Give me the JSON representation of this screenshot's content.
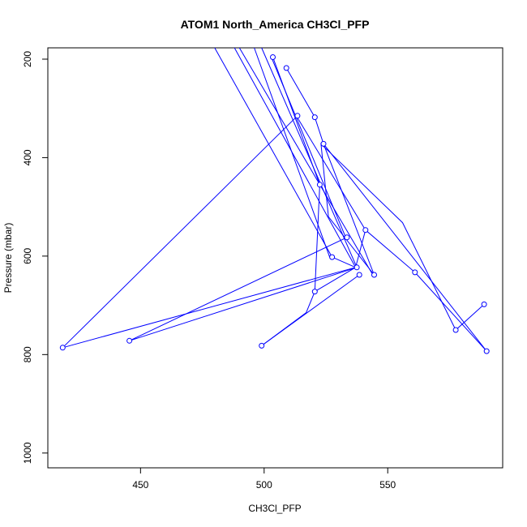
{
  "chart_data": {
    "type": "line",
    "title": "ATOM1 North_America CH3Cl_PFP",
    "xlabel": "CH3Cl_PFP",
    "ylabel": "Pressure (mbar)",
    "xlim": [
      412.5,
      596.5
    ],
    "ylim": [
      1030,
      177
    ],
    "y_reversed": true,
    "xticks": [
      450,
      500,
      550
    ],
    "yticks": [
      200,
      400,
      600,
      800,
      1000
    ],
    "grid": false,
    "color": "#0000ff",
    "marker": "open-circle",
    "series": [
      {
        "segments": [
          {
            "points": [
              [
                503.5,
                196
              ],
              [
                522.5,
                455
              ],
              [
                520.5,
                672
              ],
              [
                517.0,
                715
              ],
              [
                499.0,
                782
              ]
            ],
            "markers": [
              true,
              true,
              true,
              false,
              true
            ]
          },
          {
            "points": [
              [
                509.0,
                218
              ],
              [
                520.5,
                318
              ],
              [
                524.0,
                372
              ],
              [
                544.5,
                638
              ],
              [
                526.0,
                520
              ],
              [
                523.0,
                372
              ],
              [
                556.0,
                532
              ],
              [
                577.5,
                750
              ],
              [
                589.0,
                698
              ]
            ],
            "markers": [
              true,
              true,
              true,
              true,
              false,
              false,
              false,
              true,
              true
            ]
          },
          {
            "points": [
              [
                513.5,
                315
              ],
              [
                418.5,
                786
              ]
            ],
            "markers": [
              true,
              true
            ]
          },
          {
            "points": [
              [
                499.0,
                782
              ],
              [
                538.5,
                638
              ]
            ],
            "markers": [
              false,
              true
            ]
          },
          {
            "points": [
              [
                533.5,
                562
              ],
              [
                445.5,
                772
              ],
              [
                537.5,
                623
              ]
            ],
            "markers": [
              true,
              true,
              true
            ]
          },
          {
            "points": [
              [
                418.5,
                786
              ],
              [
                537.0,
                623
              ],
              [
                520.5,
                672
              ]
            ],
            "markers": [
              false,
              false,
              false
            ]
          },
          {
            "points": [
              [
                537.0,
                623
              ],
              [
                541.0,
                547
              ],
              [
                561.0,
                633
              ],
              [
                590.0,
                793
              ]
            ],
            "markers": [
              false,
              true,
              true,
              true
            ]
          },
          {
            "points": [
              [
                527.5,
                602
              ],
              [
                537.0,
                623
              ]
            ],
            "markers": [
              true,
              false
            ]
          },
          {
            "points": [
              [
                503.0,
                197
              ],
              [
                533.0,
                562
              ]
            ],
            "markers": [
              false,
              false
            ]
          },
          {
            "points": [
              [
                513.0,
                315
              ],
              [
                541.0,
                547
              ]
            ],
            "markers": [
              false,
              false
            ]
          },
          {
            "points": [
              [
                524.0,
                372
              ],
              [
                590.0,
                793
              ]
            ],
            "markers": [
              false,
              false
            ]
          },
          {
            "points": [
              [
                480.0,
                177
              ],
              [
                527.5,
                602
              ]
            ],
            "markers": [
              false,
              false
            ]
          },
          {
            "points": [
              [
                488.0,
                177
              ],
              [
                537.0,
                623
              ]
            ],
            "markers": [
              false,
              false
            ]
          },
          {
            "points": [
              [
                490.0,
                177
              ],
              [
                544.0,
                638
              ]
            ],
            "markers": [
              false,
              false
            ]
          },
          {
            "points": [
              [
                496.0,
                177
              ],
              [
                526.5,
                602
              ]
            ],
            "markers": [
              false,
              false
            ]
          },
          {
            "points": [
              [
                499.0,
                177
              ],
              [
                537.5,
                623
              ]
            ],
            "markers": [
              false,
              false
            ]
          }
        ]
      }
    ]
  }
}
